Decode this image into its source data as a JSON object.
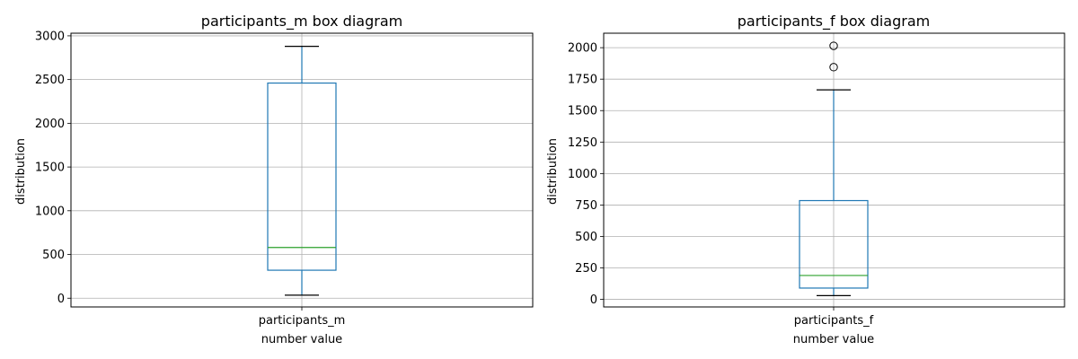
{
  "chart_data": [
    {
      "type": "box",
      "title": "participants_m box diagram",
      "xlabel": "number value",
      "ylabel": "distribution",
      "categories": [
        "participants_m"
      ],
      "ylim": [
        -100,
        3030
      ],
      "yticks": [
        0,
        500,
        1000,
        1500,
        2000,
        2500,
        3000
      ],
      "grid": true,
      "box": {
        "whisker_low": 35,
        "q1": 320,
        "median": 580,
        "q3": 2460,
        "whisker_high": 2880,
        "outliers": []
      },
      "colors": {
        "box": "#1f77b4",
        "median": "#2ca02c",
        "whisker_cap": "#000000",
        "grid": "#b0b0b0"
      }
    },
    {
      "type": "box",
      "title": "participants_f box diagram",
      "xlabel": "number value",
      "ylabel": "distribution",
      "categories": [
        "participants_f"
      ],
      "ylim": [
        -60,
        2115
      ],
      "yticks": [
        0,
        250,
        500,
        750,
        1000,
        1250,
        1500,
        1750,
        2000
      ],
      "grid": true,
      "box": {
        "whisker_low": 30,
        "q1": 90,
        "median": 190,
        "q3": 785,
        "whisker_high": 1665,
        "outliers": [
          1845,
          2015
        ]
      },
      "colors": {
        "box": "#1f77b4",
        "median": "#2ca02c",
        "whisker_cap": "#000000",
        "grid": "#b0b0b0"
      }
    }
  ]
}
